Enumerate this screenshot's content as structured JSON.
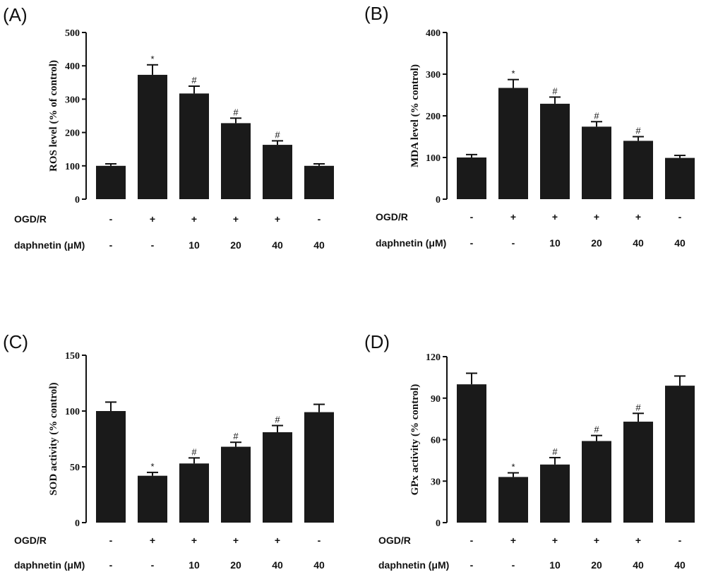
{
  "chart_data": [
    {
      "type": "bar",
      "panel": "(A)",
      "ylabel": "ROS level (% of control)",
      "ylim": [
        0,
        500
      ],
      "yticks": [
        "0",
        "100",
        "200",
        "300",
        "400",
        "500"
      ],
      "values": [
        100,
        373,
        317,
        228,
        163,
        100
      ],
      "errors": [
        6,
        30,
        22,
        15,
        12,
        6
      ],
      "significance": [
        "",
        "*",
        "#",
        "#",
        "#",
        ""
      ],
      "rows": [
        {
          "label": "OGD/R",
          "cells": [
            "-",
            "+",
            "+",
            "+",
            "+",
            "-"
          ]
        },
        {
          "label": "daphnetin (μM)",
          "cells": [
            "-",
            "-",
            "10",
            "20",
            "40",
            "40"
          ]
        }
      ]
    },
    {
      "type": "bar",
      "panel": "(B)",
      "ylabel": "MDA level (% control)",
      "ylim": [
        0,
        400
      ],
      "yticks": [
        "0",
        "100",
        "200",
        "300",
        "400"
      ],
      "values": [
        100,
        267,
        229,
        174,
        140,
        99
      ],
      "errors": [
        7,
        20,
        16,
        12,
        10,
        6
      ],
      "significance": [
        "",
        "*",
        "#",
        "#",
        "#",
        ""
      ],
      "rows": [
        {
          "label": "OGD/R",
          "cells": [
            "-",
            "+",
            "+",
            "+",
            "+",
            "-"
          ]
        },
        {
          "label": "daphnetin (μM)",
          "cells": [
            "-",
            "-",
            "10",
            "20",
            "40",
            "40"
          ]
        }
      ]
    },
    {
      "type": "bar",
      "panel": "(C)",
      "ylabel": "SOD activity (% control)",
      "ylim": [
        0,
        150
      ],
      "yticks": [
        "0",
        "50",
        "100",
        "150"
      ],
      "values": [
        100,
        42,
        53,
        68,
        81,
        99
      ],
      "errors": [
        8,
        3,
        5,
        4,
        6,
        7
      ],
      "significance": [
        "",
        "*",
        "#",
        "#",
        "#",
        ""
      ],
      "rows": [
        {
          "label": "OGD/R",
          "cells": [
            "-",
            "+",
            "+",
            "+",
            "+",
            "-"
          ]
        },
        {
          "label": "daphnetin (μM)",
          "cells": [
            "-",
            "-",
            "10",
            "20",
            "40",
            "40"
          ]
        }
      ]
    },
    {
      "type": "bar",
      "panel": "(D)",
      "ylabel": "GPx activity (% control)",
      "ylim": [
        0,
        120
      ],
      "yticks": [
        "0",
        "30",
        "60",
        "90",
        "120"
      ],
      "values": [
        100,
        33,
        42,
        59,
        73,
        99
      ],
      "errors": [
        8,
        3,
        5,
        4,
        6,
        7
      ],
      "significance": [
        "",
        "*",
        "#",
        "#",
        "#",
        ""
      ],
      "rows": [
        {
          "label": "OGD/R",
          "cells": [
            "-",
            "+",
            "+",
            "+",
            "+",
            "-"
          ]
        },
        {
          "label": "daphnetin (μM)",
          "cells": [
            "-",
            "-",
            "10",
            "20",
            "40",
            "40"
          ]
        }
      ]
    }
  ],
  "colors": {
    "bar": "#1a1a1a",
    "axis": "#111111"
  }
}
